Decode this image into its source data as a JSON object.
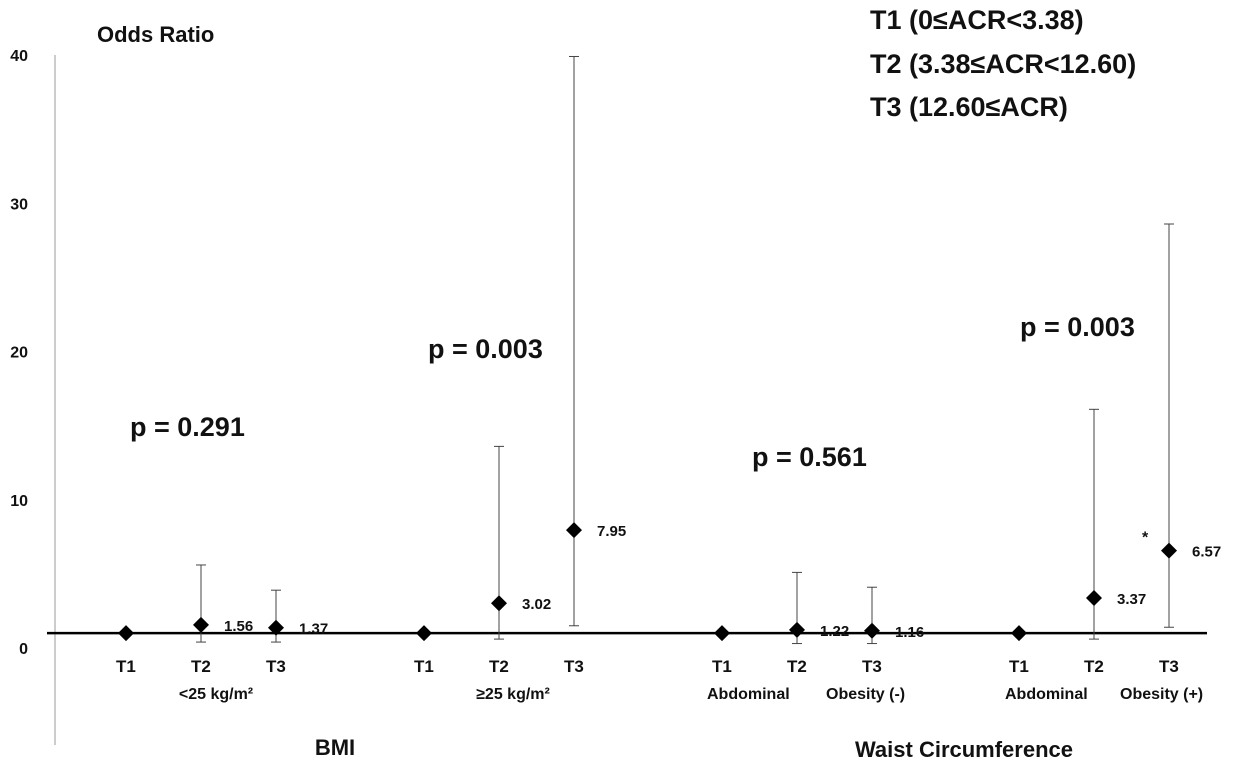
{
  "chart_data": {
    "type": "scatter",
    "ylabel": "Odds Ratio",
    "ylim": [
      0,
      40
    ],
    "yticks": [
      0,
      10,
      20,
      30,
      40
    ],
    "reference_line": 1,
    "legend": [
      "T1 (0≤ACR<3.38)",
      "T2 (3.38≤ACR<12.60)",
      "T3 (12.60≤ACR)"
    ],
    "subgroups": [
      {
        "name": "<25 kg/m²",
        "p": "p = 0.291",
        "points": [
          {
            "tick": "T1",
            "or": 1.0,
            "ci": null,
            "label": ""
          },
          {
            "tick": "T2",
            "or": 1.56,
            "ci": [
              0.4,
              5.6
            ],
            "label": "1.56"
          },
          {
            "tick": "T3",
            "or": 1.37,
            "ci": [
              0.4,
              3.9
            ],
            "label": "1.37"
          }
        ]
      },
      {
        "name": "≥25 kg/m²",
        "p": "p = 0.003",
        "points": [
          {
            "tick": "T1",
            "or": 1.0,
            "ci": null,
            "label": ""
          },
          {
            "tick": "T2",
            "or": 3.02,
            "ci": [
              0.6,
              13.6
            ],
            "label": "3.02"
          },
          {
            "tick": "T3",
            "or": 7.95,
            "ci": [
              1.5,
              39.9
            ],
            "label": "7.95"
          }
        ]
      },
      {
        "name": "Abdominal  Obesity (-)",
        "p": "p = 0.561",
        "points": [
          {
            "tick": "T1",
            "or": 1.0,
            "ci": null,
            "label": ""
          },
          {
            "tick": "T2",
            "or": 1.22,
            "ci": [
              0.3,
              5.1
            ],
            "label": "1.22"
          },
          {
            "tick": "T3",
            "or": 1.16,
            "ci": [
              0.3,
              4.1
            ],
            "label": "1.16"
          }
        ]
      },
      {
        "name": "Abdominal  Obesity (+)",
        "p": "p = 0.003",
        "points": [
          {
            "tick": "T1",
            "or": 1.0,
            "ci": null,
            "label": ""
          },
          {
            "tick": "T2",
            "or": 3.37,
            "ci": [
              0.6,
              16.1
            ],
            "label": "3.37"
          },
          {
            "tick": "T3",
            "or": 6.57,
            "ci": [
              1.4,
              28.6
            ],
            "label": "6.57",
            "star": "*"
          }
        ]
      }
    ],
    "groups": [
      "BMI",
      "Waist Circumference"
    ]
  }
}
